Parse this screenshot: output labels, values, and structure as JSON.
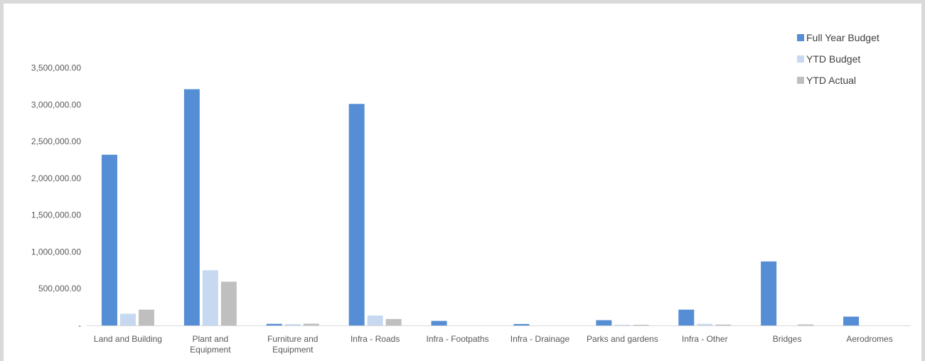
{
  "chart_data": {
    "type": "bar",
    "title": "",
    "xlabel": "",
    "ylabel": "",
    "categories": [
      [
        "Land and Building"
      ],
      [
        "Plant and",
        "Equipment"
      ],
      [
        "Furniture and",
        "Equipment"
      ],
      [
        "Infra - Roads"
      ],
      [
        "Infra - Footpaths"
      ],
      [
        "Infra - Drainage"
      ],
      [
        "Parks and gardens"
      ],
      [
        "Infra - Other"
      ],
      [
        "Bridges"
      ],
      [
        "Aerodromes"
      ]
    ],
    "series": [
      {
        "name": "Full Year Budget",
        "color": "#558ed5",
        "values": [
          2320000,
          3210000,
          22000,
          3010000,
          62000,
          20000,
          72000,
          215000,
          870000,
          120000
        ]
      },
      {
        "name": "YTD Budget",
        "color": "#c6d9f1",
        "values": [
          160000,
          750000,
          18000,
          135000,
          0,
          0,
          10000,
          22000,
          0,
          0
        ]
      },
      {
        "name": "YTD Actual",
        "color": "#bfbfbf",
        "values": [
          215000,
          595000,
          25000,
          88000,
          0,
          0,
          9000,
          12000,
          14000,
          0
        ]
      }
    ],
    "yticks": [
      "-",
      "500,000.00",
      "1,000,000.00",
      "1,500,000.00",
      "2,000,000.00",
      "2,500,000.00",
      "3,000,000.00",
      "3,500,000.00"
    ],
    "ylim": [
      0,
      3500000
    ],
    "grid": false,
    "legend_position": "top-right"
  }
}
